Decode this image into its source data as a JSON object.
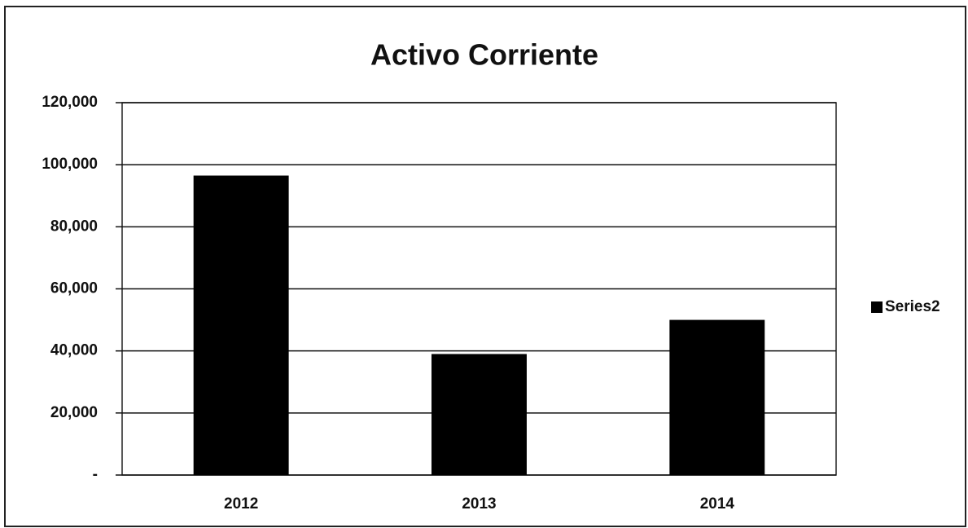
{
  "chart_data": {
    "type": "bar",
    "title": "Activo Corriente",
    "categories": [
      "2012",
      "2013",
      "2014"
    ],
    "series": [
      {
        "name": "Series2",
        "color": "#000000",
        "values": [
          96500,
          39000,
          50000
        ]
      }
    ],
    "ylim": [
      0,
      120000
    ],
    "yticks": [
      {
        "value": 0,
        "label": "-"
      },
      {
        "value": 20000,
        "label": "20,000"
      },
      {
        "value": 40000,
        "label": "40,000"
      },
      {
        "value": 60000,
        "label": "60,000"
      },
      {
        "value": 80000,
        "label": "80,000"
      },
      {
        "value": 100000,
        "label": "100,000"
      },
      {
        "value": 120000,
        "label": "120,000"
      }
    ],
    "grid": true,
    "legend": "right"
  }
}
